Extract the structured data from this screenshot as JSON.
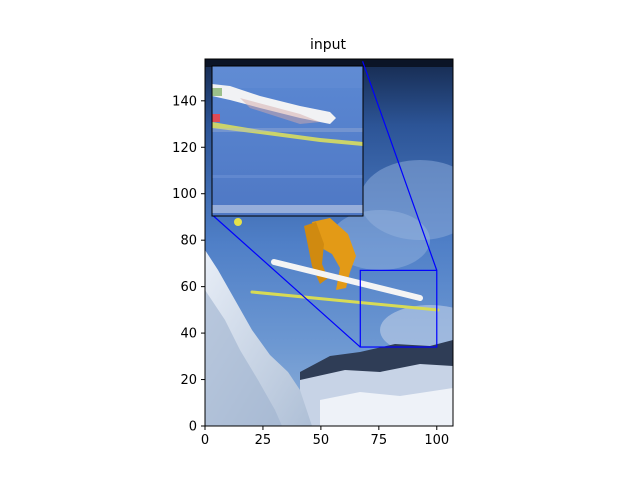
{
  "chart_data": {
    "type": "image",
    "title": "input",
    "xlabel": "",
    "ylabel": "",
    "xlim": [
      0,
      107
    ],
    "ylim": [
      0,
      158
    ],
    "xticks": [
      0,
      25,
      50,
      75,
      100
    ],
    "yticks": [
      0,
      20,
      40,
      60,
      80,
      100,
      120,
      140
    ],
    "image_subject": "skier mid-jump against blue sky over snowy slope",
    "zoom_region": {
      "x": [
        67,
        100
      ],
      "y": [
        34,
        67
      ]
    },
    "inset_extent_data": {
      "x": [
        3,
        68
      ],
      "y": [
        91,
        157
      ]
    },
    "indicator_color": "#0000ff"
  }
}
